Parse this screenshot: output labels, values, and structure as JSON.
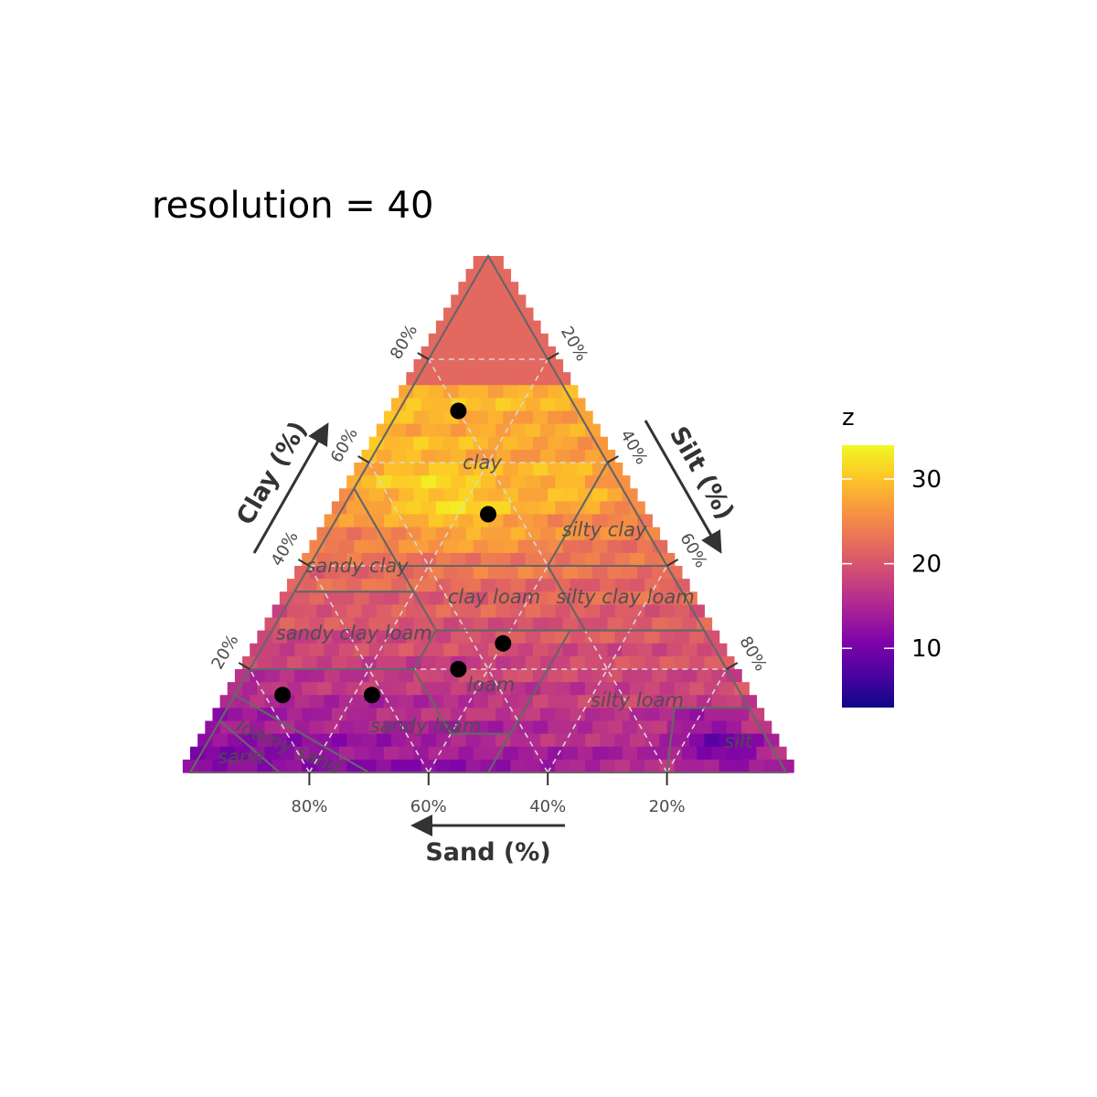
{
  "chart_data": {
    "type": "heatmap",
    "subtype": "ternary-soil-texture",
    "title": "resolution = 40",
    "resolution": 40,
    "axes": {
      "sand": {
        "label": "Sand (%)",
        "ticks": [
          "80%",
          "60%",
          "40%",
          "20%"
        ],
        "tick_values": [
          80,
          60,
          40,
          20
        ]
      },
      "clay": {
        "label": "Clay (%)",
        "ticks": [
          "80%",
          "60%",
          "40%",
          "20%"
        ],
        "tick_values": [
          80,
          60,
          40,
          20
        ]
      },
      "silt": {
        "label": "Silt (%)",
        "ticks": [
          "20%",
          "40%",
          "60%",
          "80%"
        ],
        "tick_values": [
          20,
          40,
          60,
          80
        ]
      }
    },
    "grid": {
      "style": "dashed",
      "values": [
        20,
        40,
        60,
        80
      ]
    },
    "regions": [
      {
        "name": "clay",
        "label": "clay",
        "label_at": {
          "sand": 21,
          "clay": 60
        },
        "polygon": [
          [
            0,
            100
          ],
          [
            0,
            60
          ],
          [
            20,
            40
          ],
          [
            45,
            40
          ],
          [
            45,
            55
          ]
        ]
      },
      {
        "name": "silty clay",
        "label": "silty clay",
        "label_at": {
          "sand": 7,
          "clay": 47
        },
        "polygon": [
          [
            0,
            60
          ],
          [
            0,
            40
          ],
          [
            20,
            40
          ]
        ]
      },
      {
        "name": "sandy clay",
        "label": "sandy clay",
        "label_at": {
          "sand": 52,
          "clay": 40
        },
        "polygon": [
          [
            45,
            55
          ],
          [
            45,
            35
          ],
          [
            65,
            35
          ]
        ]
      },
      {
        "name": "silty clay loam",
        "label": "silty clay loam",
        "label_at": {
          "sand": 10,
          "clay": 34
        },
        "polygon": [
          [
            0,
            40
          ],
          [
            0,
            27.5
          ],
          [
            20,
            27.5
          ],
          [
            20,
            40
          ]
        ]
      },
      {
        "name": "clay loam",
        "label": "clay loam",
        "label_at": {
          "sand": 32,
          "clay": 34
        },
        "polygon": [
          [
            20,
            40
          ],
          [
            20,
            27.5
          ],
          [
            45,
            27.5
          ],
          [
            45,
            40
          ]
        ]
      },
      {
        "name": "sandy clay loam",
        "label": "sandy clay loam",
        "label_at": {
          "sand": 59,
          "clay": 27
        },
        "polygon": [
          [
            45,
            35
          ],
          [
            45,
            27.5
          ],
          [
            52.5,
            20
          ],
          [
            80,
            20
          ],
          [
            65,
            35
          ]
        ]
      },
      {
        "name": "loam",
        "label": "loam",
        "label_at": {
          "sand": 41,
          "clay": 17
        },
        "polygon": [
          [
            45,
            27.5
          ],
          [
            22.5,
            27.5
          ],
          [
            42.5,
            7.5
          ],
          [
            52.5,
            7.5
          ],
          [
            52.5,
            20
          ]
        ]
      },
      {
        "name": "silty loam",
        "label": "silty loam",
        "label_at": {
          "sand": 18,
          "clay": 14
        },
        "polygon": [
          [
            0,
            27.5
          ],
          [
            22.5,
            27.5
          ],
          [
            50,
            0
          ],
          [
            20,
            0
          ],
          [
            12.5,
            12.5
          ],
          [
            0,
            12.5
          ]
        ]
      },
      {
        "name": "silt",
        "label": "silt",
        "label_at": {
          "sand": 5,
          "clay": 6
        },
        "polygon": [
          [
            0,
            12.5
          ],
          [
            12.5,
            12.5
          ],
          [
            20,
            0
          ],
          [
            0,
            0
          ]
        ]
      },
      {
        "name": "sandy loam",
        "label": "sandy loam",
        "label_at": {
          "sand": 56,
          "clay": 9
        },
        "polygon": [
          [
            52.5,
            20
          ],
          [
            80,
            20
          ],
          [
            85,
            15
          ],
          [
            70,
            0
          ],
          [
            50,
            0
          ],
          [
            42.5,
            7.5
          ],
          [
            52.5,
            7.5
          ]
        ]
      },
      {
        "name": "loamy sand",
        "label": "loamy sand",
        "label_at": {
          "sand": 81,
          "clay": 5
        },
        "polygon": [
          [
            85,
            15
          ],
          [
            90,
            10
          ],
          [
            85,
            0
          ],
          [
            70,
            0
          ]
        ]
      },
      {
        "name": "sand",
        "label": "sand",
        "label_at": {
          "sand": 90,
          "clay": 3
        },
        "polygon": [
          [
            90,
            10
          ],
          [
            100,
            0
          ],
          [
            85,
            0
          ]
        ]
      }
    ],
    "points": [
      {
        "sand": 20,
        "clay": 70
      },
      {
        "sand": 25,
        "clay": 50
      },
      {
        "sand": 35,
        "clay": 25
      },
      {
        "sand": 45,
        "clay": 20
      },
      {
        "sand": 62,
        "clay": 15
      },
      {
        "sand": 77,
        "clay": 15
      }
    ],
    "colorbar": {
      "title": "z",
      "min": 3,
      "max": 34,
      "ticks": [
        10,
        20,
        30
      ],
      "palette": "plasma"
    },
    "heat_cells_nonuniform": "z estimated per 40x40 grid cell; value approx. 24 - 8*(silt share) + 9*(clay share) - 14*(sand share)*(1-clay share), with hotspots near clay 50-55%"
  }
}
